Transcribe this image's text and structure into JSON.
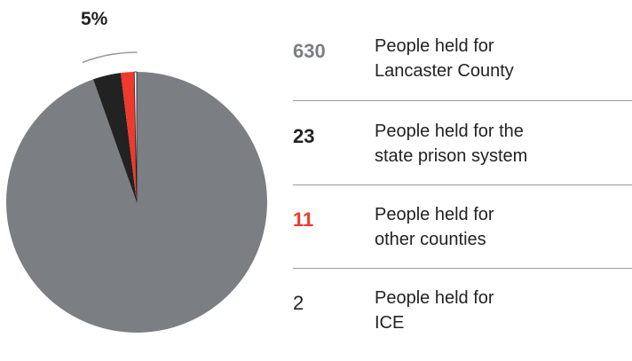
{
  "chart_data": {
    "type": "pie",
    "callout_label": "5%",
    "slices": [
      {
        "value": 630,
        "label": "People held for\nLancaster County",
        "color": "#7b7e83",
        "value_color": "#7b7e83",
        "value_weight": "bold"
      },
      {
        "value": 23,
        "label": "People held for the\nstate prison system",
        "color": "#222222",
        "value_color": "#222222",
        "value_weight": "bold"
      },
      {
        "value": 11,
        "label": "People held for\nother counties",
        "color": "#ee3a2d",
        "value_color": "#ee3a2d",
        "value_weight": "bold"
      },
      {
        "value": 2,
        "label": "People held for\nICE",
        "color": "#ffffff",
        "value_color": "#222222",
        "value_weight": "normal"
      }
    ]
  }
}
